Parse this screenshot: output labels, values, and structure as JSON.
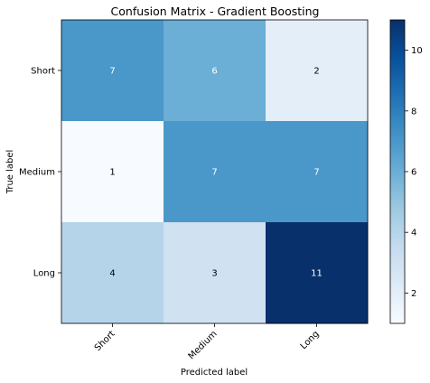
{
  "chart_data": {
    "type": "heatmap",
    "title": "Confusion Matrix - Gradient Boosting",
    "xlabel": "Predicted label",
    "ylabel": "True label",
    "x_categories": [
      "Short",
      "Medium",
      "Long"
    ],
    "y_categories": [
      "Short",
      "Medium",
      "Long"
    ],
    "values": [
      [
        7,
        6,
        2
      ],
      [
        1,
        7,
        7
      ],
      [
        4,
        3,
        11
      ]
    ],
    "colormap": "Blues",
    "color_range": [
      1,
      11
    ],
    "colorbar_ticks": [
      2,
      4,
      6,
      8,
      10
    ]
  }
}
